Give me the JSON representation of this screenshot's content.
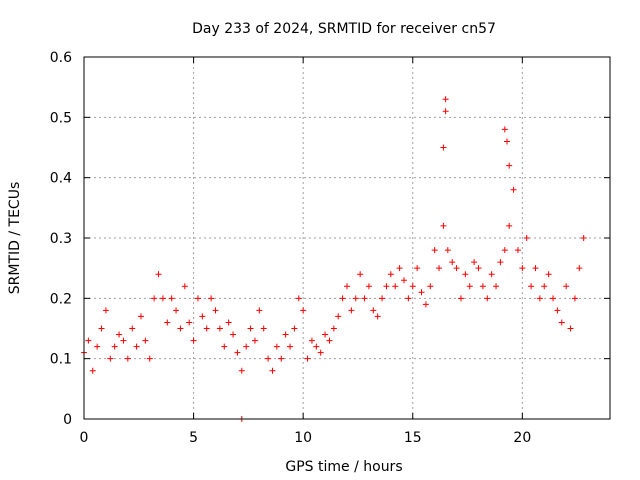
{
  "chart_data": {
    "type": "scatter",
    "title": "Day 233 of 2024, SRMTID for receiver cn57",
    "xlabel": "GPS time / hours",
    "ylabel": "SRMTID / TECUs",
    "xlim": [
      0,
      24
    ],
    "ylim": [
      0,
      0.6
    ],
    "x_ticks": [
      0,
      5,
      10,
      15,
      20
    ],
    "x_tick_labels": [
      "0",
      "5",
      "10",
      "15",
      "20"
    ],
    "y_ticks": [
      0,
      0.1,
      0.2,
      0.3,
      0.4,
      0.5,
      0.6
    ],
    "y_tick_labels": [
      "0",
      "0.1",
      "0.2",
      "0.3",
      "0.4",
      "0.5",
      "0.6"
    ],
    "grid": true,
    "marker": "+",
    "color": "#ff0000",
    "series": [
      {
        "name": "SRMTID",
        "x": [
          0.0,
          0.2,
          0.4,
          0.6,
          0.8,
          1.0,
          1.2,
          1.4,
          1.6,
          1.8,
          2.0,
          2.2,
          2.4,
          2.6,
          2.8,
          3.0,
          3.2,
          3.4,
          3.6,
          3.8,
          4.0,
          4.2,
          4.4,
          4.6,
          4.8,
          5.0,
          5.2,
          5.4,
          5.6,
          5.8,
          6.0,
          6.2,
          6.4,
          6.6,
          6.8,
          7.0,
          7.2,
          7.4,
          7.6,
          7.8,
          8.0,
          8.2,
          8.4,
          8.6,
          8.8,
          9.0,
          9.2,
          9.4,
          9.6,
          9.8,
          10.0,
          10.2,
          10.4,
          10.6,
          10.8,
          11.0,
          11.2,
          11.4,
          11.6,
          11.8,
          12.0,
          12.2,
          12.4,
          12.6,
          12.8,
          13.0,
          13.2,
          13.4,
          13.6,
          13.8,
          14.0,
          14.2,
          14.4,
          14.6,
          14.8,
          15.0,
          15.2,
          15.4,
          15.6,
          15.8,
          16.0,
          16.2,
          16.4,
          16.6,
          16.8,
          17.0,
          17.2,
          17.4,
          17.6,
          17.8,
          18.0,
          18.2,
          18.4,
          18.6,
          18.8,
          19.0,
          19.2,
          19.4,
          19.6,
          19.8,
          20.0,
          20.2,
          20.4,
          20.6,
          20.8,
          21.0,
          21.2,
          21.4,
          21.6,
          21.8,
          22.0,
          22.2,
          22.4,
          22.6,
          22.8
        ],
        "y": [
          0.11,
          0.13,
          0.08,
          0.12,
          0.15,
          0.18,
          0.1,
          0.12,
          0.14,
          0.13,
          0.1,
          0.15,
          0.12,
          0.17,
          0.13,
          0.1,
          0.2,
          0.24,
          0.2,
          0.16,
          0.2,
          0.18,
          0.15,
          0.22,
          0.16,
          0.13,
          0.2,
          0.17,
          0.15,
          0.2,
          0.18,
          0.15,
          0.12,
          0.16,
          0.14,
          0.11,
          0.08,
          0.12,
          0.15,
          0.13,
          0.18,
          0.15,
          0.1,
          0.08,
          0.12,
          0.1,
          0.14,
          0.12,
          0.15,
          0.2,
          0.18,
          0.1,
          0.13,
          0.12,
          0.11,
          0.14,
          0.13,
          0.15,
          0.17,
          0.2,
          0.22,
          0.18,
          0.2,
          0.24,
          0.2,
          0.22,
          0.18,
          0.17,
          0.2,
          0.22,
          0.24,
          0.22,
          0.25,
          0.23,
          0.2,
          0.22,
          0.25,
          0.21,
          0.19,
          0.22,
          0.28,
          0.25,
          0.32,
          0.28,
          0.26,
          0.25,
          0.2,
          0.24,
          0.22,
          0.26,
          0.25,
          0.22,
          0.2,
          0.24,
          0.22,
          0.26,
          0.28,
          0.32,
          0.38,
          0.28,
          0.25,
          0.3,
          0.22,
          0.25,
          0.2,
          0.22,
          0.24,
          0.2,
          0.18,
          0.16,
          0.22,
          0.15,
          0.2,
          0.25,
          0.3
        ],
        "notable_points": [
          {
            "x": 16.5,
            "y": 0.53
          },
          {
            "x": 16.5,
            "y": 0.51
          },
          {
            "x": 16.4,
            "y": 0.45
          },
          {
            "x": 19.2,
            "y": 0.48
          },
          {
            "x": 19.3,
            "y": 0.46
          },
          {
            "x": 19.4,
            "y": 0.42
          },
          {
            "x": 7.2,
            "y": 0.0
          }
        ]
      }
    ]
  }
}
